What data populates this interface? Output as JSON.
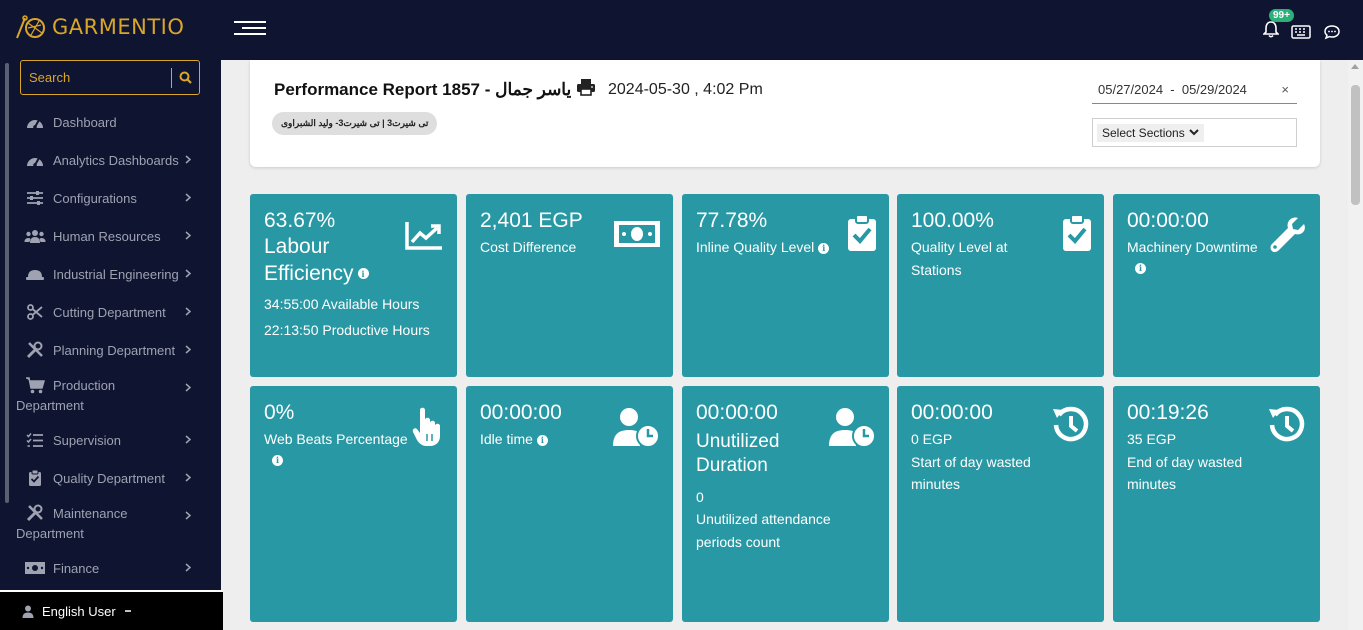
{
  "app": {
    "logo_text": "GARMENTIO",
    "notifications": "99+"
  },
  "sidebar": {
    "search_placeholder": "Search",
    "items": [
      {
        "label": "Dashboard",
        "icon": "gauge-icon"
      },
      {
        "label": "Analytics Dashboards",
        "icon": "gauge-icon"
      },
      {
        "label": "Configurations",
        "icon": "sliders-icon"
      },
      {
        "label": "Human Resources",
        "icon": "users-icon"
      },
      {
        "label": "Industrial Engineering",
        "icon": "hardhat-icon"
      },
      {
        "label": "Cutting Department",
        "icon": "scissors-icon"
      },
      {
        "label": "Planning Department",
        "icon": "tools-icon"
      },
      {
        "label": "Production",
        "label2": "Department",
        "icon": "cart-icon"
      },
      {
        "label": "Supervision",
        "icon": "list-check-icon"
      },
      {
        "label": "Quality Department",
        "icon": "clipboard-check-icon"
      },
      {
        "label": "Maintenance",
        "label2": "Department",
        "icon": "tools-icon"
      },
      {
        "label": "Finance",
        "icon": "money-icon"
      }
    ],
    "user": "English User"
  },
  "header": {
    "title": "Performance Report 1857 - ياسر جمال",
    "datetime": "2024-05-30 , 4:02 Pm",
    "shift_chip": "تى شيرت3 | تى شيرت3- وليد الشبراوى",
    "date_range": "05/27/2024  -  05/29/2024",
    "clear": "×",
    "sections_label": "Select Sections"
  },
  "cards": {
    "labour": {
      "value": "63.67% Labour Efficiency",
      "available": "34:55:00  Available Hours",
      "productive": "22:13:50  Productive Hours"
    },
    "cost": {
      "value": "2,401 EGP",
      "label": "Cost Difference"
    },
    "inline": {
      "value": "77.78%",
      "label": "Inline Quality Level"
    },
    "stations": {
      "value": "100.00%",
      "label": "Quality Level at Stations"
    },
    "machinery": {
      "value": "00:00:00",
      "label": "Machinery Downtime"
    },
    "webbeats": {
      "value": "0%",
      "label": "Web Beats Percentage"
    },
    "idle": {
      "value": "00:00:00",
      "label": "Idle time"
    },
    "unutilized": {
      "value": "00:00:00",
      "title": "Unutilized Duration",
      "count": "0",
      "count_label": "Unutilized attendance periods count"
    },
    "start_day": {
      "value": "00:00:00",
      "egp": "0 EGP",
      "label": "Start of day wasted minutes"
    },
    "end_day": {
      "value": "00:19:26",
      "egp": "35 EGP",
      "label": "End of day wasted minutes"
    }
  },
  "colors": {
    "card": "#2898a4",
    "nav": "#0f1431",
    "accent": "#d9a62a"
  }
}
